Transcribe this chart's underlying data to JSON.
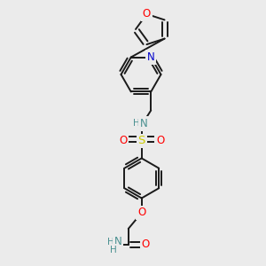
{
  "background_color": "#ebebeb",
  "bond_color": "#1a1a1a",
  "bond_width": 1.4,
  "atom_colors": {
    "O": "#ff0000",
    "N": "#0000cc",
    "S": "#cccc00",
    "NH": "#4a9090",
    "C": "#1a1a1a"
  },
  "font_size": 8.5,
  "fig_width": 3.0,
  "fig_height": 3.0,
  "dpi": 100,
  "xlim": [
    0,
    10
  ],
  "ylim": [
    0,
    10
  ]
}
